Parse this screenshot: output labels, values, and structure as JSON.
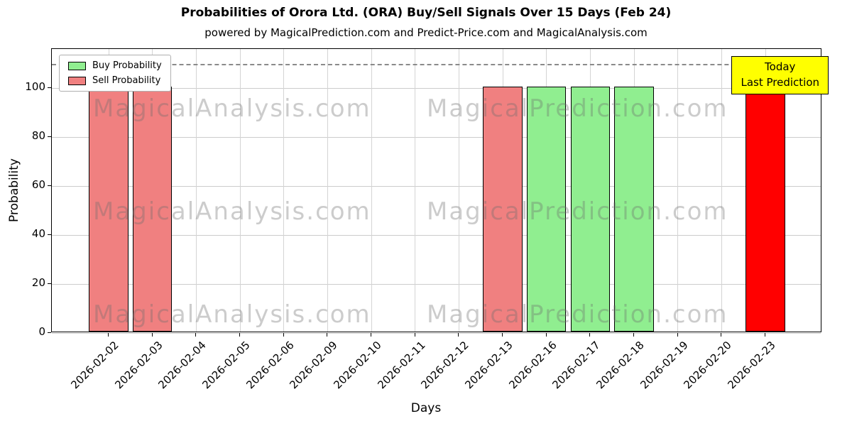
{
  "subtitle": "powered by MagicalPrediction.com and Predict-Price.com and MagicalAnalysis.com",
  "legend": {
    "buy": "Buy Probability",
    "sell": "Sell Probability"
  },
  "annotation": {
    "line1": "Today",
    "line2": "Last Prediction"
  },
  "watermarks": [
    "MagicalAnalysis.com",
    "MagicalPrediction.com"
  ],
  "colors": {
    "buy": "#90ee90",
    "sell": "#f08080",
    "today": "#ff0000",
    "annotation_bg": "#ffff00",
    "grid": "#cccccc",
    "dashed_line": "#8a8a8a"
  },
  "chart_data": {
    "type": "bar",
    "title": "Probabilities of Orora Ltd. (ORA) Buy/Sell Signals Over 15 Days (Feb 24)",
    "xlabel": "Days",
    "ylabel": "Probability",
    "ylim": [
      0,
      116
    ],
    "yticks": [
      0,
      20,
      40,
      60,
      80,
      100
    ],
    "dashed_line_y": 110,
    "grid": true,
    "legend_position": "upper-left",
    "categories": [
      "2026-02-02",
      "2026-02-03",
      "2026-02-04",
      "2026-02-05",
      "2026-02-06",
      "2026-02-09",
      "2026-02-10",
      "2026-02-11",
      "2026-02-12",
      "2026-02-13",
      "2026-02-16",
      "2026-02-17",
      "2026-02-18",
      "2026-02-19",
      "2026-02-20",
      "2026-02-23"
    ],
    "series": [
      {
        "name": "Sell Probability",
        "color": "#f08080",
        "values": [
          100,
          100,
          0,
          0,
          0,
          0,
          0,
          0,
          0,
          100,
          0,
          0,
          0,
          0,
          0,
          0
        ]
      },
      {
        "name": "Buy Probability",
        "color": "#90ee90",
        "values": [
          0,
          0,
          0,
          0,
          0,
          0,
          0,
          0,
          0,
          0,
          100,
          100,
          100,
          0,
          0,
          0
        ]
      },
      {
        "name": "Today Last Prediction",
        "color": "#ff0000",
        "values": [
          0,
          0,
          0,
          0,
          0,
          0,
          0,
          0,
          0,
          0,
          0,
          0,
          0,
          0,
          0,
          100
        ]
      }
    ]
  }
}
